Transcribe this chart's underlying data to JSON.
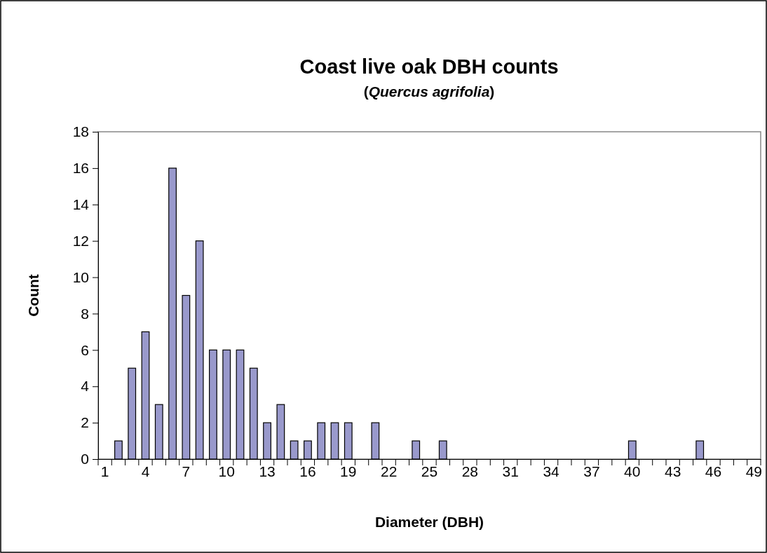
{
  "chart_data": {
    "type": "bar",
    "title": "Coast live oak DBH counts",
    "subtitle": "(Quercus agrifolia)",
    "xlabel": "Diameter (DBH)",
    "ylabel": "Count",
    "categories": [
      "1",
      null,
      null,
      "4",
      null,
      null,
      "7",
      null,
      null,
      "10",
      null,
      null,
      "13",
      null,
      null,
      "16",
      null,
      null,
      "19",
      null,
      null,
      "22",
      null,
      null,
      "25",
      null,
      null,
      "28",
      null,
      null,
      "31",
      null,
      null,
      "34",
      null,
      null,
      "37",
      null,
      null,
      "40",
      null,
      null,
      "43",
      null,
      null,
      "46",
      null,
      null,
      "49"
    ],
    "values": [
      0,
      1,
      5,
      7,
      3,
      16,
      9,
      12,
      6,
      6,
      6,
      5,
      2,
      3,
      1,
      1,
      2,
      2,
      2,
      0,
      2,
      0,
      0,
      1,
      0,
      1,
      0,
      0,
      0,
      0,
      0,
      0,
      0,
      0,
      0,
      0,
      0,
      0,
      0,
      1,
      0,
      0,
      0,
      0,
      1,
      0,
      0,
      0,
      0
    ],
    "color": "#9999cc",
    "ylim": [
      0,
      18
    ],
    "yticks": [
      0,
      2,
      4,
      6,
      8,
      10,
      12,
      14,
      16,
      18
    ]
  }
}
